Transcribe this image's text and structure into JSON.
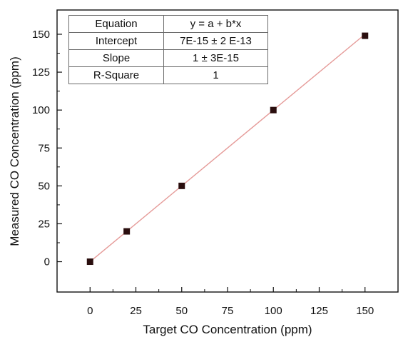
{
  "chart_data": {
    "type": "scatter",
    "x": [
      0,
      20,
      50,
      100,
      150
    ],
    "y": [
      0,
      20,
      50,
      100,
      149
    ],
    "fit_line": {
      "type": "linear",
      "color": "#e59a98",
      "x_range": [
        0,
        150
      ],
      "y_range": [
        0,
        150
      ]
    },
    "marker_color": "#2a0e0e",
    "xlabel": "Target CO Concentration (ppm)",
    "ylabel": "Measured CO Concentration (ppm)",
    "xticks": [
      0,
      25,
      50,
      75,
      100,
      125,
      150
    ],
    "yticks": [
      0,
      25,
      50,
      75,
      100,
      125,
      150
    ],
    "xlim": [
      -18,
      168
    ],
    "ylim": [
      -20,
      166
    ],
    "grid": false
  },
  "fit_table": {
    "rows": [
      {
        "label": "Equation",
        "value": "y = a + b*x"
      },
      {
        "label": "Intercept",
        "value": "7E-15 ± 2 E-13"
      },
      {
        "label": "Slope",
        "value": "1 ± 3E-15"
      },
      {
        "label": "R-Square",
        "value": "1"
      }
    ]
  }
}
